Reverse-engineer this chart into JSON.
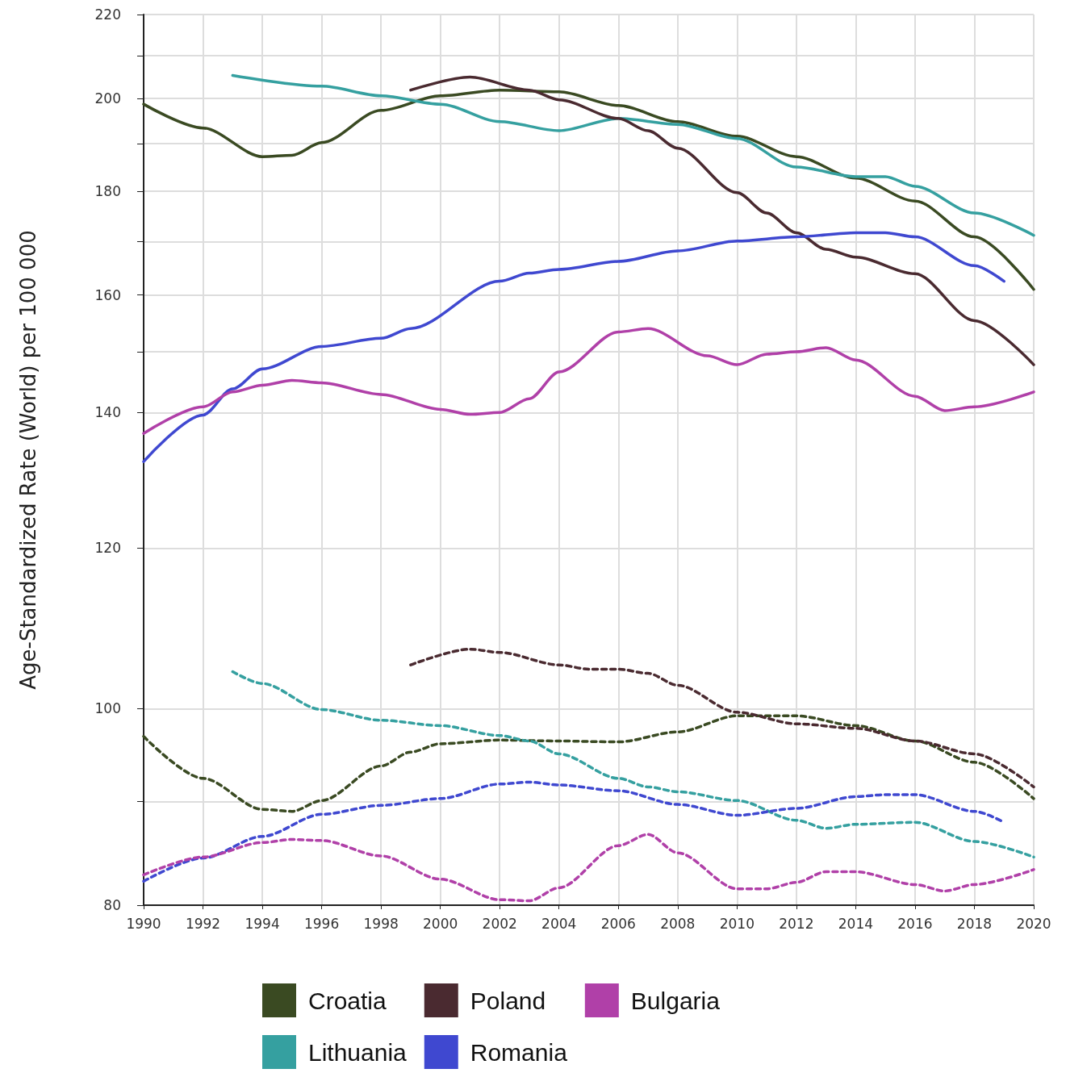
{
  "chart_data": {
    "type": "line",
    "ylabel": "Age-Standardized Rate (World) per 100 000",
    "log": "y",
    "grid": true,
    "legend": "bottom",
    "marker": "none",
    "line_style": "solid",
    "xlim": [
      1990,
      2020
    ],
    "xticks": [
      1990,
      1992,
      1994,
      1996,
      1998,
      2000,
      2002,
      2004,
      2006,
      2008,
      2010,
      2012,
      2014,
      2016,
      2018,
      2020
    ],
    "ylim": [
      80,
      220
    ],
    "yticks": [
      80,
      {
        "value": 90,
        "label": null
      },
      100,
      120,
      140,
      {
        "value": 150,
        "label": null
      },
      160,
      {
        "value": 170,
        "label": null
      },
      180,
      {
        "value": 190,
        "label": null
      },
      200,
      {
        "value": 210,
        "label": null
      },
      220
    ],
    "series": [
      {
        "name": "Croatia",
        "color": "#3a4a22",
        "x": [
          1990,
          1992,
          1994,
          1995,
          1996,
          1998,
          2000,
          2002,
          2004,
          2006,
          2008,
          2010,
          2012,
          2014,
          2016,
          2018,
          2020
        ],
        "values": [
          198.7,
          193.4,
          187.2,
          187.5,
          190.2,
          197.3,
          200.6,
          201.9,
          201.5,
          198.4,
          194.8,
          191.6,
          187.2,
          182.7,
          178.0,
          170.9,
          161.0
        ]
      },
      {
        "name": "Lithuania",
        "color": "#35a0a0",
        "x": [
          1993,
          1996,
          1998,
          2000,
          2002,
          2004,
          2006,
          2008,
          2010,
          2012,
          2014,
          2015,
          2016,
          2018,
          2020
        ],
        "values": [
          205.3,
          202.8,
          200.6,
          198.7,
          194.8,
          192.8,
          195.5,
          194.2,
          191.1,
          185.0,
          183.0,
          183.0,
          181.0,
          175.6,
          171.2
        ]
      },
      {
        "name": "Poland",
        "color": "#4a2a30",
        "x": [
          1999,
          2001,
          2003,
          2004,
          2006,
          2007,
          2008,
          2010,
          2011,
          2012,
          2013,
          2014,
          2016,
          2018,
          2020
        ],
        "values": [
          201.9,
          204.9,
          201.9,
          199.7,
          195.5,
          192.8,
          189.0,
          179.7,
          175.6,
          171.7,
          168.5,
          167.0,
          163.9,
          155.4,
          147.8
        ]
      },
      {
        "name": "Romania",
        "color": "#3f48d0",
        "x": [
          1990,
          1992,
          1993,
          1994,
          1996,
          1998,
          1999,
          2002,
          2003,
          2004,
          2006,
          2008,
          2010,
          2012,
          2014,
          2015,
          2016,
          2018,
          2019
        ],
        "values": [
          132.4,
          139.6,
          143.8,
          147.1,
          150.9,
          152.3,
          154.0,
          162.5,
          164.0,
          164.7,
          166.2,
          168.2,
          170.1,
          170.9,
          171.7,
          171.7,
          170.9,
          165.4,
          162.5
        ]
      },
      {
        "name": "Bulgaria",
        "color": "#b040a8",
        "x": [
          1990,
          1992,
          1993,
          1994,
          1995,
          1996,
          1998,
          2000,
          2001,
          2002,
          2003,
          2004,
          2006,
          2007,
          2009,
          2010,
          2011,
          2012,
          2013,
          2014,
          2016,
          2017,
          2018,
          2020
        ],
        "values": [
          136.7,
          140.9,
          143.3,
          144.4,
          145.2,
          144.8,
          142.9,
          140.5,
          139.7,
          140.0,
          142.2,
          146.6,
          153.4,
          154.0,
          149.3,
          147.8,
          149.6,
          150.0,
          150.7,
          148.6,
          142.6,
          140.3,
          140.9,
          143.3
        ]
      },
      {
        "color": "#3a4a22",
        "line_style": "dashed",
        "x": [
          1990,
          1992,
          1994,
          1995,
          1996,
          1998,
          1999,
          2000,
          2002,
          2004,
          2006,
          2008,
          2010,
          2012,
          2014,
          2016,
          2018,
          2020
        ],
        "values": [
          96.9,
          92.4,
          89.2,
          89.0,
          90.1,
          93.7,
          95.2,
          96.1,
          96.5,
          96.4,
          96.3,
          97.4,
          99.2,
          99.2,
          98.1,
          96.4,
          94.1,
          90.3
        ]
      },
      {
        "color": "#35a0a0",
        "line_style": "dashed",
        "x": [
          1993,
          1994,
          1996,
          1998,
          2000,
          2002,
          2003,
          2004,
          2006,
          2007,
          2008,
          2010,
          2012,
          2013,
          2014,
          2016,
          2018,
          2020
        ],
        "values": [
          104.3,
          102.9,
          99.9,
          98.7,
          98.1,
          97.0,
          96.4,
          95.0,
          92.4,
          91.5,
          91.0,
          90.1,
          88.1,
          87.3,
          87.7,
          87.9,
          86.0,
          84.5
        ]
      },
      {
        "color": "#4a2a30",
        "line_style": "dashed",
        "x": [
          1999,
          2001,
          2002,
          2004,
          2005,
          2006,
          2007,
          2008,
          2010,
          2012,
          2014,
          2016,
          2018,
          2020
        ],
        "values": [
          105.1,
          107.0,
          106.6,
          105.1,
          104.6,
          104.6,
          104.1,
          102.7,
          99.6,
          98.3,
          97.8,
          96.4,
          95.0,
          91.5
        ]
      },
      {
        "color": "#3f48d0",
        "line_style": "dashed",
        "x": [
          1990,
          1992,
          1994,
          1996,
          1998,
          2000,
          2002,
          2003,
          2004,
          2006,
          2008,
          2010,
          2012,
          2014,
          2015,
          2016,
          2018,
          2019
        ],
        "values": [
          82.2,
          84.4,
          86.5,
          88.7,
          89.6,
          90.3,
          91.8,
          92.0,
          91.7,
          91.1,
          89.7,
          88.6,
          89.3,
          90.5,
          90.7,
          90.7,
          89.0,
          87.9
        ]
      },
      {
        "color": "#b040a8",
        "line_style": "dashed",
        "x": [
          1990,
          1992,
          1994,
          1995,
          1996,
          1998,
          2000,
          2002,
          2003,
          2004,
          2006,
          2007,
          2008,
          2010,
          2011,
          2012,
          2013,
          2014,
          2016,
          2017,
          2018,
          2020
        ],
        "values": [
          82.8,
          84.5,
          85.9,
          86.2,
          86.1,
          84.6,
          82.4,
          80.5,
          80.4,
          81.6,
          85.6,
          86.7,
          84.9,
          81.5,
          81.5,
          82.1,
          83.1,
          83.1,
          81.9,
          81.3,
          81.9,
          83.3
        ]
      }
    ]
  }
}
